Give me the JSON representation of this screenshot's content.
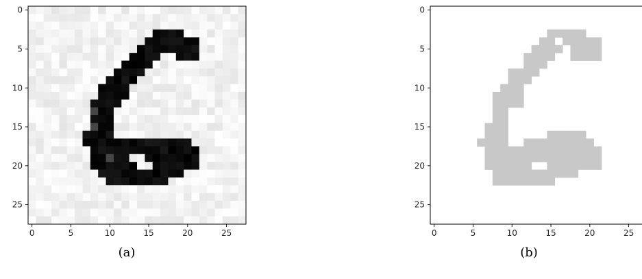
{
  "figure": {
    "panels": [
      {
        "caption": "(a)"
      },
      {
        "caption": "(b)"
      }
    ]
  },
  "chart_data": [
    {
      "type": "heatmap",
      "caption": "(a)",
      "colormap": "gray_r",
      "grid": false,
      "xlim": [
        -0.5,
        27.5
      ],
      "ylim": [
        27.5,
        -0.5
      ],
      "xticks": [
        0,
        5,
        10,
        15,
        20,
        25
      ],
      "yticks": [
        0,
        5,
        10,
        15,
        20,
        25
      ],
      "noise_background": true,
      "stroke_intensity": 0.93,
      "stroke_rows": [
        [
          3,
          16,
          19
        ],
        [
          4,
          15,
          21
        ],
        [
          5,
          14,
          21
        ],
        [
          6,
          13,
          16
        ],
        [
          6,
          19,
          21
        ],
        [
          7,
          12,
          15
        ],
        [
          8,
          11,
          14
        ],
        [
          9,
          10,
          13
        ],
        [
          10,
          9,
          12
        ],
        [
          11,
          9,
          12
        ],
        [
          12,
          8,
          11
        ],
        [
          13,
          8,
          10
        ],
        [
          14,
          8,
          10
        ],
        [
          15,
          8,
          10
        ],
        [
          16,
          7,
          10
        ],
        [
          17,
          7,
          20
        ],
        [
          18,
          8,
          21
        ],
        [
          19,
          8,
          12
        ],
        [
          19,
          15,
          21
        ],
        [
          20,
          8,
          13
        ],
        [
          20,
          15,
          21
        ],
        [
          21,
          9,
          19
        ],
        [
          22,
          10,
          17
        ]
      ],
      "holes": [
        [
          20,
          14,
          15
        ]
      ]
    },
    {
      "type": "heatmap",
      "caption": "(b)",
      "colormap": "single-value mask",
      "fill_color": "#c8c8c8",
      "background_color": "#ffffff",
      "grid": false,
      "xlim": [
        -0.5,
        27.5
      ],
      "ylim": [
        27.5,
        -0.5
      ],
      "xticks": [
        0,
        5,
        10,
        15,
        20,
        25
      ],
      "yticks": [
        0,
        5,
        10,
        15,
        20,
        25
      ],
      "mask_rows": [
        [
          3,
          15,
          19
        ],
        [
          4,
          14,
          15
        ],
        [
          4,
          17,
          21
        ],
        [
          5,
          13,
          16
        ],
        [
          5,
          18,
          21
        ],
        [
          6,
          12,
          15
        ],
        [
          6,
          18,
          21
        ],
        [
          7,
          12,
          14
        ],
        [
          8,
          10,
          13
        ],
        [
          9,
          10,
          12
        ],
        [
          10,
          9,
          11
        ],
        [
          11,
          8,
          11
        ],
        [
          12,
          8,
          11
        ],
        [
          13,
          8,
          9
        ],
        [
          14,
          8,
          9
        ],
        [
          15,
          7,
          9
        ],
        [
          16,
          7,
          9
        ],
        [
          16,
          15,
          19
        ],
        [
          17,
          6,
          9
        ],
        [
          17,
          12,
          20
        ],
        [
          18,
          7,
          21
        ],
        [
          19,
          7,
          21
        ],
        [
          20,
          7,
          12
        ],
        [
          20,
          15,
          21
        ],
        [
          21,
          8,
          18
        ],
        [
          22,
          8,
          15
        ]
      ]
    }
  ]
}
